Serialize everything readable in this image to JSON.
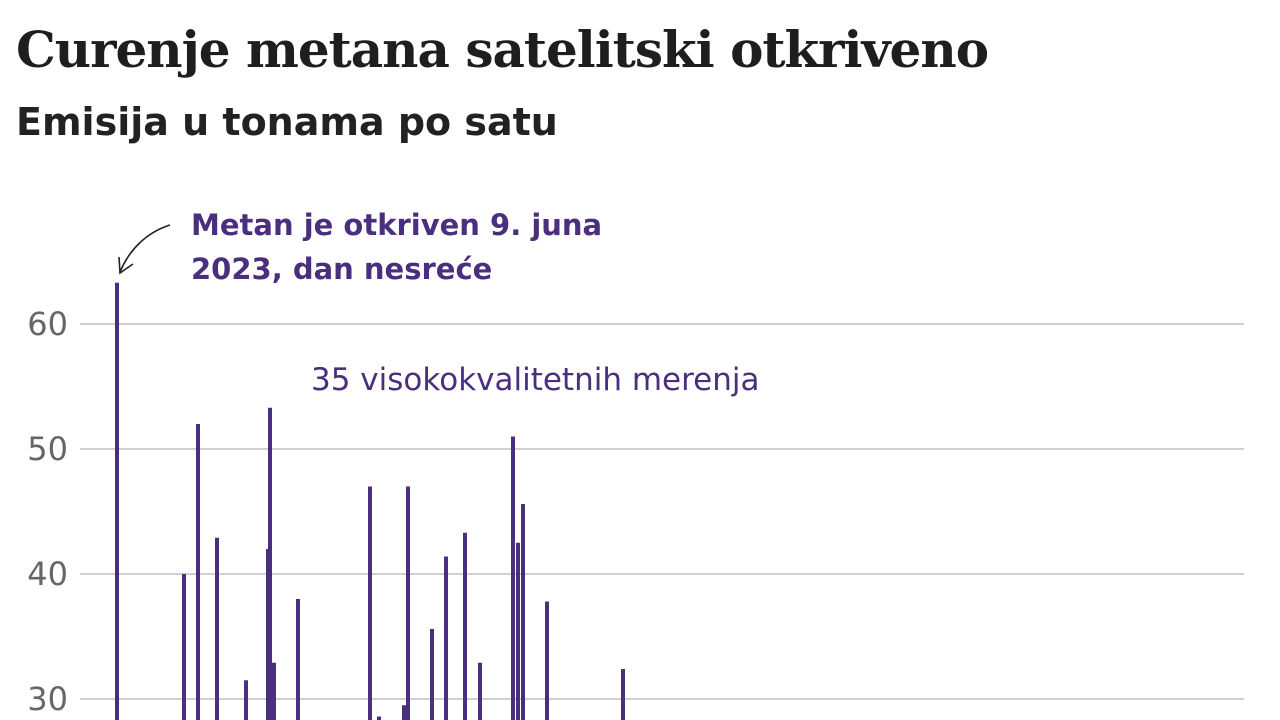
{
  "chart_data": {
    "type": "bar",
    "title": "Curenje metana satelitski otkriveno",
    "subtitle": "Emisija u tonama po satu",
    "ylim": [
      28,
      66
    ],
    "yticks": [
      30,
      40,
      50,
      60
    ],
    "grid": true,
    "values": [
      63.3,
      40.0,
      52.0,
      42.9,
      31.5,
      53.3,
      42.0,
      32.9,
      38.0,
      47.0,
      28.6,
      29.5,
      47.0,
      35.6,
      41.4,
      43.3,
      32.9,
      51.0,
      42.5,
      45.6,
      37.8,
      32.4
    ],
    "annotations": [
      {
        "id": "first-detection",
        "lines": [
          "Metan je otkriven 9. juna",
          "2023, dan nesreće"
        ]
      },
      {
        "id": "measurement-count",
        "text": "35 visokokvalitetnih merenja"
      }
    ],
    "series_color": "#4b2f7f",
    "grid_color": "#d0d0d0"
  }
}
